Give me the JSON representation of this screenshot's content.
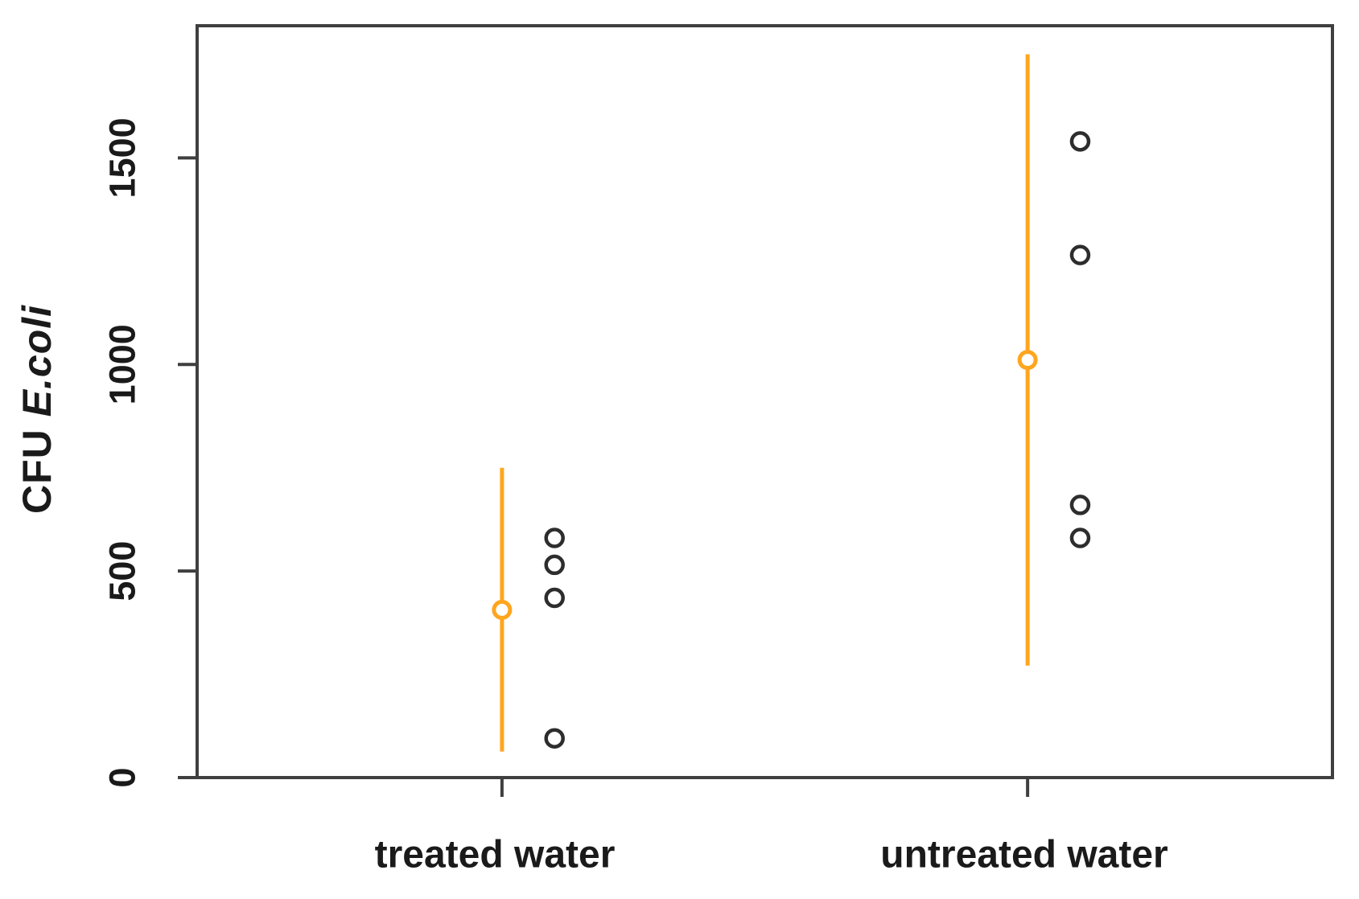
{
  "chart_data": {
    "type": "scatter",
    "title": "",
    "xlabel": "",
    "ylabel": "CFU E.coli",
    "ylabel_prefix": "CFU ",
    "ylabel_italic": "E.coli",
    "yticks": [
      0,
      500,
      1000,
      1500
    ],
    "ylim": [
      0,
      1820
    ],
    "xlim": [
      0.42,
      2.58
    ],
    "grid": false,
    "legend_position": "none",
    "point_x_offset": 0.1,
    "groups": [
      {
        "label": "treated water",
        "x": 1,
        "mean": 406,
        "ci_low": 63,
        "ci_high": 750,
        "points": [
          580,
          515,
          435,
          95
        ]
      },
      {
        "label": "untreated water",
        "x": 2,
        "mean": 1011,
        "ci_low": 271,
        "ci_high": 1751,
        "points": [
          1540,
          1265,
          660,
          580
        ]
      }
    ],
    "colors": {
      "mean_ci": "#FFA51E",
      "points": "#2D2D2D",
      "axis": "#3F3F3F",
      "text": "#1A1A1A"
    }
  }
}
